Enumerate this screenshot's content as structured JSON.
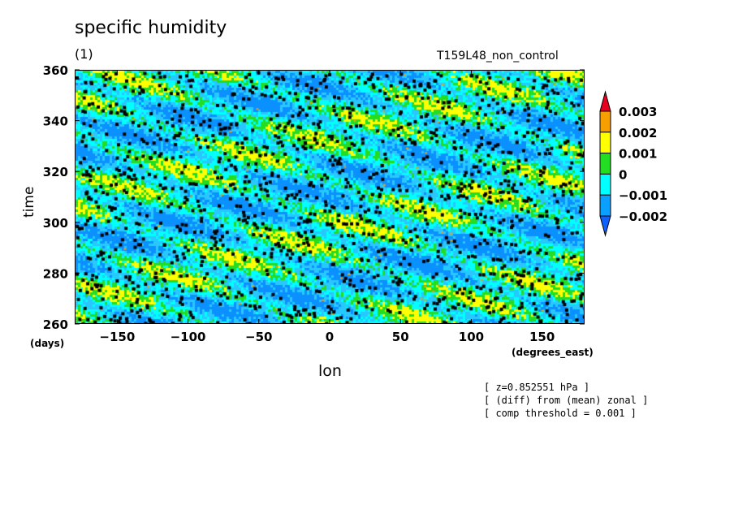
{
  "chart_data": {
    "type": "heatmap",
    "title": "specific humidity",
    "subtitle": "(1)",
    "run_label": "T159L48_non_control",
    "xlabel": "lon",
    "ylabel": "time",
    "xunit": "(degrees_east)",
    "yunit": "(days)",
    "xlim": [
      -180,
      180
    ],
    "ylim": [
      260,
      360
    ],
    "x_ticks": [
      -150,
      -100,
      -50,
      0,
      50,
      100,
      150
    ],
    "x_tick_labels": [
      "−150",
      "−100",
      "−50",
      "0",
      "50",
      "100",
      "150"
    ],
    "y_ticks": [
      260,
      280,
      300,
      320,
      340,
      360
    ],
    "y_tick_labels": [
      "260",
      "280",
      "300",
      "320",
      "340",
      "360"
    ],
    "colorbar": {
      "levels": [
        0.003,
        0.002,
        0.001,
        0,
        -0.001,
        -0.002
      ],
      "level_labels": [
        "0.003",
        "0.002",
        "0.001",
        "0",
        "−0.001",
        "−0.002"
      ],
      "colors": [
        "#e8001f",
        "#f5a000",
        "#ffff00",
        "#22dd22",
        "#00ffff",
        "#0aa0ff",
        "#1060ff"
      ]
    },
    "notes": [
      "[ z=0.852551 hPa ]",
      "[ (diff) from (mean) zonal ]",
      "[ comp threshold = 0.001 ]"
    ]
  }
}
